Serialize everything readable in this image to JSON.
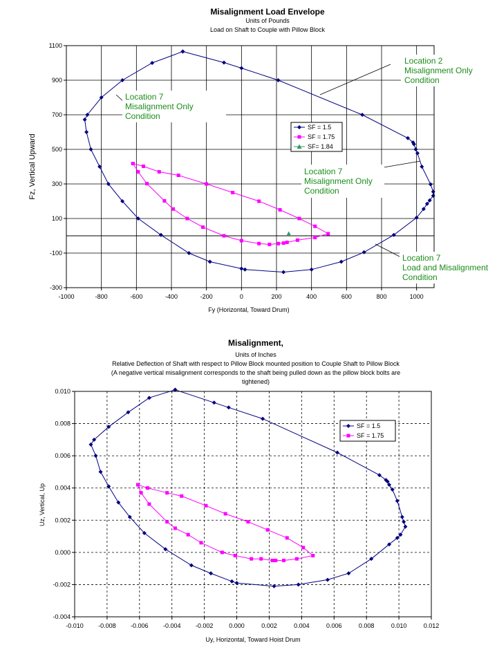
{
  "chart_data": [
    {
      "type": "scatter",
      "title": "Misalignment Load Envelope",
      "subtitles": [
        "Units of Pounds",
        "Load on Shaft to Couple with Pillow Block"
      ],
      "xlabel": "Fy (Horizontal, Toward Drum)",
      "ylabel": "Fz, Vertical Upward",
      "xlim": [
        -1000,
        1100
      ],
      "ylim": [
        -300,
        1100
      ],
      "xticks": [
        -1000,
        -800,
        -600,
        -400,
        -200,
        0,
        200,
        400,
        600,
        800,
        1000
      ],
      "yticks": [
        -300,
        -100,
        100,
        300,
        500,
        700,
        900,
        1100
      ],
      "grid": "major, solid",
      "legend_position": "center-right",
      "reference_line_y": 0,
      "series": [
        {
          "name": "SF = 1.5",
          "color": "#000080",
          "marker": "diamond",
          "points": [
            [
              -335,
              1066
            ],
            [
              -100,
              1002
            ],
            [
              0,
              970
            ],
            [
              210,
              900
            ],
            [
              690,
              700
            ],
            [
              950,
              565
            ],
            [
              980,
              540
            ],
            [
              985,
              530
            ],
            [
              995,
              500
            ],
            [
              1005,
              478
            ],
            [
              1030,
              400
            ],
            [
              1080,
              298
            ],
            [
              1095,
              255
            ],
            [
              1095,
              232
            ],
            [
              1075,
              205
            ],
            [
              1060,
              185
            ],
            [
              1040,
              155
            ],
            [
              1000,
              105
            ],
            [
              870,
              5
            ],
            [
              700,
              -95
            ],
            [
              570,
              -150
            ],
            [
              400,
              -195
            ],
            [
              240,
              -210
            ],
            [
              20,
              -195
            ],
            [
              0,
              -190
            ],
            [
              -180,
              -150
            ],
            [
              -300,
              -100
            ],
            [
              -460,
              5
            ],
            [
              -590,
              100
            ],
            [
              -680,
              200
            ],
            [
              -760,
              300
            ],
            [
              -810,
              400
            ],
            [
              -860,
              500
            ],
            [
              -885,
              600
            ],
            [
              -895,
              672
            ],
            [
              -880,
              700
            ],
            [
              -800,
              800
            ],
            [
              -680,
              900
            ],
            [
              -510,
              1000
            ],
            [
              -335,
              1066
            ]
          ]
        },
        {
          "name": "SF = 1.75",
          "color": "#ff00ff",
          "marker": "square",
          "points": [
            [
              -620,
              418
            ],
            [
              -560,
              402
            ],
            [
              -470,
              370
            ],
            [
              -360,
              350
            ],
            [
              -200,
              300
            ],
            [
              -50,
              250
            ],
            [
              100,
              200
            ],
            [
              220,
              150
            ],
            [
              330,
              100
            ],
            [
              420,
              55
            ],
            [
              495,
              12
            ],
            [
              420,
              -10
            ],
            [
              320,
              -25
            ],
            [
              260,
              -38
            ],
            [
              240,
              -42
            ],
            [
              210,
              -45
            ],
            [
              160,
              -50
            ],
            [
              100,
              -45
            ],
            [
              0,
              -28
            ],
            [
              -100,
              0
            ],
            [
              -220,
              50
            ],
            [
              -310,
              100
            ],
            [
              -390,
              155
            ],
            [
              -440,
              202
            ],
            [
              -540,
              302
            ],
            [
              -590,
              370
            ],
            [
              -620,
              418
            ]
          ]
        },
        {
          "name": "SF= 1.84",
          "color": "#339966",
          "marker": "triangle",
          "points": [
            [
              270,
              12
            ]
          ]
        }
      ],
      "annotations": [
        {
          "text": [
            "Location 2",
            "Misalignment Only",
            "Condition"
          ]
        },
        {
          "text": [
            "Location 7",
            "Misalignment Only",
            "Condition"
          ]
        },
        {
          "text": [
            "Location 7",
            "Misalignment Only",
            "Condition"
          ]
        },
        {
          "text": [
            "Location 7",
            "Load and Misalignment",
            "Condition"
          ]
        }
      ]
    },
    {
      "type": "scatter",
      "title": "Misalignment,",
      "subtitles": [
        "Units of Inches",
        "Relative Deflection of Shaft with respect to Pillow Block mounted position to Couple Shaft to Pillow Block",
        "(A negative vertical misalignment corresponds to the shaft being pulled down as the pillow block bolts are",
        "tightened)"
      ],
      "xlabel": "Uy, Horizontal, Toward Hoist Drum",
      "ylabel": "Uz, Vertical, Up",
      "xlim": [
        -0.01,
        0.012
      ],
      "ylim": [
        -0.004,
        0.01
      ],
      "xticks": [
        "-0.010",
        "-0.008",
        "-0.006",
        "-0.004",
        "-0.002",
        "0.000",
        "0.002",
        "0.004",
        "0.006",
        "0.008",
        "0.010",
        "0.012"
      ],
      "yticks": [
        "-0.004",
        "-0.002",
        "0.000",
        "0.002",
        "0.004",
        "0.006",
        "0.008",
        "0.010"
      ],
      "grid": "major, dashed",
      "legend_position": "right",
      "series": [
        {
          "name": "SF = 1.5",
          "color": "#000080",
          "marker": "diamond",
          "points": [
            [
              -0.0038,
              0.0101
            ],
            [
              -0.0014,
              0.0093
            ],
            [
              -0.0005,
              0.009
            ],
            [
              0.0016,
              0.0083
            ],
            [
              0.0062,
              0.0062
            ],
            [
              0.0088,
              0.0048
            ],
            [
              0.0092,
              0.0045
            ],
            [
              0.0093,
              0.0044
            ],
            [
              0.0094,
              0.0042
            ],
            [
              0.0096,
              0.0039
            ],
            [
              0.0099,
              0.0032
            ],
            [
              0.0102,
              0.0022
            ],
            [
              0.0103,
              0.0019
            ],
            [
              0.0104,
              0.0016
            ],
            [
              0.0101,
              0.0011
            ],
            [
              0.0099,
              0.0009
            ],
            [
              0.0094,
              0.0005
            ],
            [
              0.0083,
              -0.0004
            ],
            [
              0.0069,
              -0.0013
            ],
            [
              0.0056,
              -0.0017
            ],
            [
              0.0038,
              -0.002
            ],
            [
              0.0023,
              -0.0021
            ],
            [
              0.0,
              -0.0019
            ],
            [
              -0.0003,
              -0.0018
            ],
            [
              -0.0016,
              -0.0013
            ],
            [
              -0.0028,
              -0.0008
            ],
            [
              -0.0044,
              0.0002
            ],
            [
              -0.0057,
              0.0012
            ],
            [
              -0.0066,
              0.0022
            ],
            [
              -0.0073,
              0.0031
            ],
            [
              -0.0079,
              0.0041
            ],
            [
              -0.0084,
              0.005
            ],
            [
              -0.0087,
              0.006
            ],
            [
              -0.009,
              0.0067
            ],
            [
              -0.0088,
              0.007
            ],
            [
              -0.0079,
              0.0078
            ],
            [
              -0.0067,
              0.0087
            ],
            [
              -0.0054,
              0.0096
            ],
            [
              -0.0038,
              0.0101
            ]
          ]
        },
        {
          "name": "SF = 1.75",
          "color": "#ff00ff",
          "marker": "square",
          "points": [
            [
              -0.0061,
              0.0042
            ],
            [
              -0.0055,
              0.004
            ],
            [
              -0.0043,
              0.0037
            ],
            [
              -0.0034,
              0.0035
            ],
            [
              -0.0019,
              0.0029
            ],
            [
              -0.0007,
              0.0024
            ],
            [
              0.0007,
              0.0019
            ],
            [
              0.0019,
              0.0014
            ],
            [
              0.0031,
              0.0009
            ],
            [
              0.0041,
              0.0003
            ],
            [
              0.0047,
              -0.0002
            ],
            [
              0.0037,
              -0.0004
            ],
            [
              0.0029,
              -0.0005
            ],
            [
              0.0024,
              -0.0005
            ],
            [
              0.0022,
              -0.0005
            ],
            [
              0.0015,
              -0.0004
            ],
            [
              0.0009,
              -0.0004
            ],
            [
              -0.0001,
              -0.0002
            ],
            [
              -0.0009,
              0.0
            ],
            [
              -0.0022,
              0.0006
            ],
            [
              -0.003,
              0.0011
            ],
            [
              -0.0038,
              0.0015
            ],
            [
              -0.0043,
              0.0019
            ],
            [
              -0.0054,
              0.003
            ],
            [
              -0.0059,
              0.0037
            ],
            [
              -0.0061,
              0.0042
            ]
          ]
        }
      ]
    }
  ]
}
